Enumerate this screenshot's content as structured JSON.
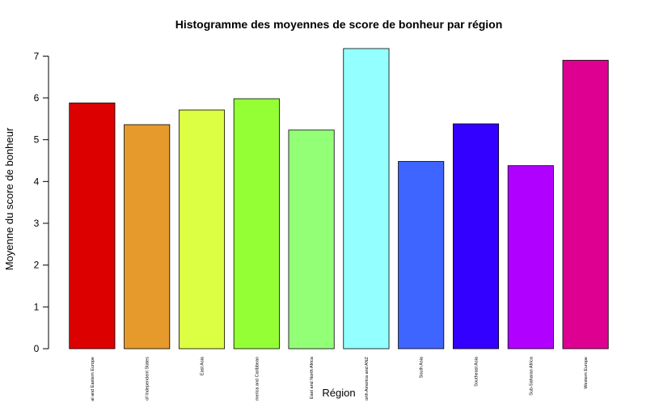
{
  "chart_data": {
    "type": "bar",
    "title": "Histogramme des moyennes de score de bonheur par région",
    "xlabel": "Région",
    "ylabel": "Moyenne du score de bonheur",
    "ylim": [
      0,
      7.2
    ],
    "yticks": [
      0,
      1,
      2,
      3,
      4,
      5,
      6,
      7
    ],
    "grid": false,
    "categories": [
      "al and Eastern Europe",
      "of Independent States",
      "East Asia",
      "merica and Caribbean",
      "East and North Africa",
      "orth America and ANZ",
      "South Asia",
      "Southeast Asia",
      "Sub-Saharan Africa",
      "Western Europe"
    ],
    "values": [
      5.88,
      5.36,
      5.71,
      5.98,
      5.23,
      7.18,
      4.48,
      5.38,
      4.38,
      6.9
    ],
    "colors": [
      "#dd0000",
      "#e69a2b",
      "#dcff44",
      "#95ff36",
      "#93ff77",
      "#93ffff",
      "#3e65ff",
      "#3300ff",
      "#b000ff",
      "#dd0091"
    ]
  }
}
